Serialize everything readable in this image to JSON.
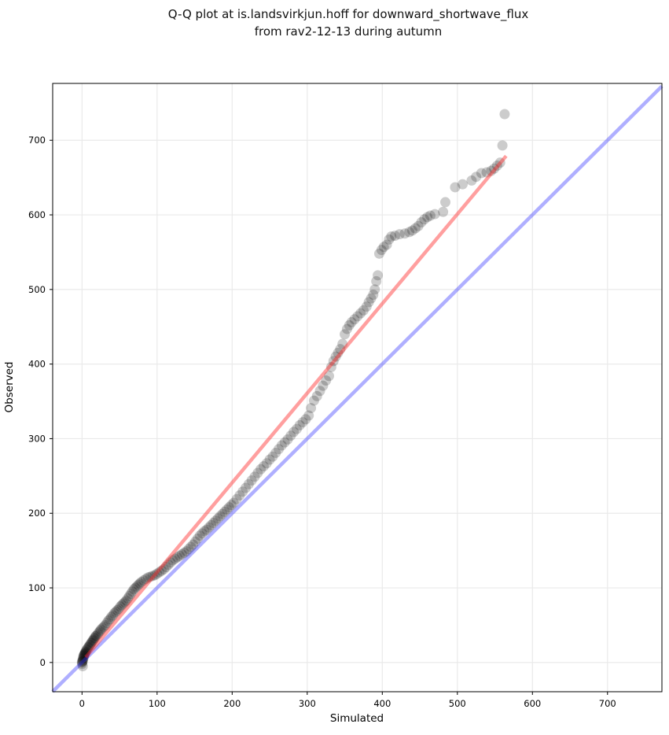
{
  "chart_data": {
    "type": "scatter",
    "title_line1": "Q-Q plot at is.landsvirkjun.hoff for downward_shortwave_flux",
    "title_line2": "from rav2-12-13 during autumn",
    "xlabel": "Simulated",
    "ylabel": "Observed",
    "xlim": [
      -39.1,
      772.5
    ],
    "ylim": [
      -39.2,
      776.2
    ],
    "xticks": [
      0,
      100,
      200,
      300,
      400,
      500,
      600,
      700
    ],
    "yticks": [
      0,
      100,
      200,
      300,
      400,
      500,
      600,
      700
    ],
    "grid": true,
    "legend": "none",
    "colors": {
      "background": "#ffffff",
      "grid": "#eaeaea",
      "spine": "#000000",
      "marker": "#000000",
      "identity_line": "#2e2eff",
      "fit_line": "#ff2a2a",
      "text": "#000000"
    },
    "marker_radius": 6.5,
    "marker_opacity": 0.2,
    "line_width": 4.5,
    "identity_line": {
      "name": "identity-reference",
      "from": [
        -39.1,
        -39.1
      ],
      "to": [
        772.5,
        772.5
      ],
      "opacity": 0.38
    },
    "fit_line": {
      "name": "qq-trend",
      "from": [
        5,
        7
      ],
      "to": [
        565,
        679
      ],
      "opacity": 0.45
    },
    "qq_points": [
      [
        1,
        -5
      ],
      [
        0,
        -2
      ],
      [
        0,
        0
      ],
      [
        0,
        1
      ],
      [
        1,
        2
      ],
      [
        1,
        3
      ],
      [
        1,
        5
      ],
      [
        2,
        6
      ],
      [
        2,
        8
      ],
      [
        2,
        9
      ],
      [
        3,
        10
      ],
      [
        3,
        11
      ],
      [
        4,
        12
      ],
      [
        4,
        13
      ],
      [
        5,
        14
      ],
      [
        5,
        15
      ],
      [
        6,
        17
      ],
      [
        7,
        18
      ],
      [
        8,
        20
      ],
      [
        9,
        21
      ],
      [
        10,
        23
      ],
      [
        11,
        24
      ],
      [
        12,
        26
      ],
      [
        13,
        27
      ],
      [
        14,
        29
      ],
      [
        15,
        30
      ],
      [
        16,
        32
      ],
      [
        17,
        33
      ],
      [
        18,
        35
      ],
      [
        19,
        36
      ],
      [
        21,
        38
      ],
      [
        22,
        40
      ],
      [
        24,
        42
      ],
      [
        25,
        44
      ],
      [
        27,
        46
      ],
      [
        29,
        48
      ],
      [
        31,
        50
      ],
      [
        33,
        53
      ],
      [
        35,
        56
      ],
      [
        37,
        58
      ],
      [
        39,
        61
      ],
      [
        41,
        63
      ],
      [
        43,
        66
      ],
      [
        45,
        68
      ],
      [
        47,
        70
      ],
      [
        49,
        72
      ],
      [
        51,
        75
      ],
      [
        53,
        77
      ],
      [
        55,
        79
      ],
      [
        57,
        81
      ],
      [
        59,
        83
      ],
      [
        61,
        86
      ],
      [
        63,
        89
      ],
      [
        65,
        92
      ],
      [
        67,
        95
      ],
      [
        69,
        98
      ],
      [
        71,
        100
      ],
      [
        73,
        102
      ],
      [
        75,
        104
      ],
      [
        77,
        106
      ],
      [
        79,
        108
      ],
      [
        82,
        110
      ],
      [
        85,
        112
      ],
      [
        88,
        114
      ],
      [
        91,
        115
      ],
      [
        94,
        116
      ],
      [
        97,
        117
      ],
      [
        100,
        119
      ],
      [
        103,
        121
      ],
      [
        106,
        123
      ],
      [
        109,
        125
      ],
      [
        112,
        128
      ],
      [
        115,
        131
      ],
      [
        118,
        134
      ],
      [
        121,
        137
      ],
      [
        124,
        139
      ],
      [
        127,
        141
      ],
      [
        130,
        143
      ],
      [
        133,
        145
      ],
      [
        136,
        147
      ],
      [
        139,
        149
      ],
      [
        142,
        152
      ],
      [
        145,
        155
      ],
      [
        148,
        158
      ],
      [
        151,
        162
      ],
      [
        154,
        166
      ],
      [
        157,
        170
      ],
      [
        160,
        173
      ],
      [
        163,
        176
      ],
      [
        166,
        178
      ],
      [
        169,
        181
      ],
      [
        172,
        184
      ],
      [
        175,
        187
      ],
      [
        178,
        190
      ],
      [
        181,
        193
      ],
      [
        184,
        196
      ],
      [
        187,
        199
      ],
      [
        190,
        202
      ],
      [
        193,
        205
      ],
      [
        196,
        208
      ],
      [
        199,
        211
      ],
      [
        202,
        214
      ],
      [
        206,
        219
      ],
      [
        210,
        224
      ],
      [
        214,
        229
      ],
      [
        218,
        234
      ],
      [
        222,
        239
      ],
      [
        226,
        244
      ],
      [
        230,
        249
      ],
      [
        234,
        254
      ],
      [
        238,
        259
      ],
      [
        242,
        263
      ],
      [
        246,
        267
      ],
      [
        250,
        272
      ],
      [
        254,
        276
      ],
      [
        258,
        281
      ],
      [
        262,
        286
      ],
      [
        266,
        291
      ],
      [
        270,
        295
      ],
      [
        274,
        299
      ],
      [
        278,
        304
      ],
      [
        282,
        309
      ],
      [
        286,
        313
      ],
      [
        290,
        318
      ],
      [
        294,
        322
      ],
      [
        298,
        326
      ],
      [
        302,
        331
      ],
      [
        305,
        341
      ],
      [
        309,
        351
      ],
      [
        313,
        357
      ],
      [
        317,
        364
      ],
      [
        321,
        371
      ],
      [
        325,
        378
      ],
      [
        329,
        384
      ],
      [
        332,
        396
      ],
      [
        335,
        404
      ],
      [
        338,
        410
      ],
      [
        341,
        415
      ],
      [
        344,
        420
      ],
      [
        347,
        427
      ],
      [
        350,
        440
      ],
      [
        353,
        447
      ],
      [
        356,
        452
      ],
      [
        359,
        456
      ],
      [
        363,
        460
      ],
      [
        367,
        464
      ],
      [
        371,
        468
      ],
      [
        375,
        472
      ],
      [
        379,
        477
      ],
      [
        382,
        483
      ],
      [
        385,
        488
      ],
      [
        388,
        493
      ],
      [
        390,
        500
      ],
      [
        392,
        511
      ],
      [
        394,
        519
      ],
      [
        396,
        548
      ],
      [
        399,
        553
      ],
      [
        402,
        557
      ],
      [
        406,
        560
      ],
      [
        409,
        567
      ],
      [
        412,
        571
      ],
      [
        417,
        572
      ],
      [
        423,
        574
      ],
      [
        430,
        575
      ],
      [
        436,
        577
      ],
      [
        440,
        579
      ],
      [
        444,
        582
      ],
      [
        448,
        585
      ],
      [
        452,
        590
      ],
      [
        456,
        594
      ],
      [
        460,
        597
      ],
      [
        464,
        599
      ],
      [
        470,
        601
      ],
      [
        481,
        604
      ],
      [
        484,
        617
      ],
      [
        497,
        637
      ],
      [
        507,
        641
      ],
      [
        519,
        646
      ],
      [
        525,
        651
      ],
      [
        532,
        656
      ],
      [
        539,
        657
      ],
      [
        545,
        659
      ],
      [
        549,
        662
      ],
      [
        553,
        666
      ],
      [
        557,
        670
      ],
      [
        560,
        693
      ],
      [
        563,
        735
      ]
    ]
  }
}
